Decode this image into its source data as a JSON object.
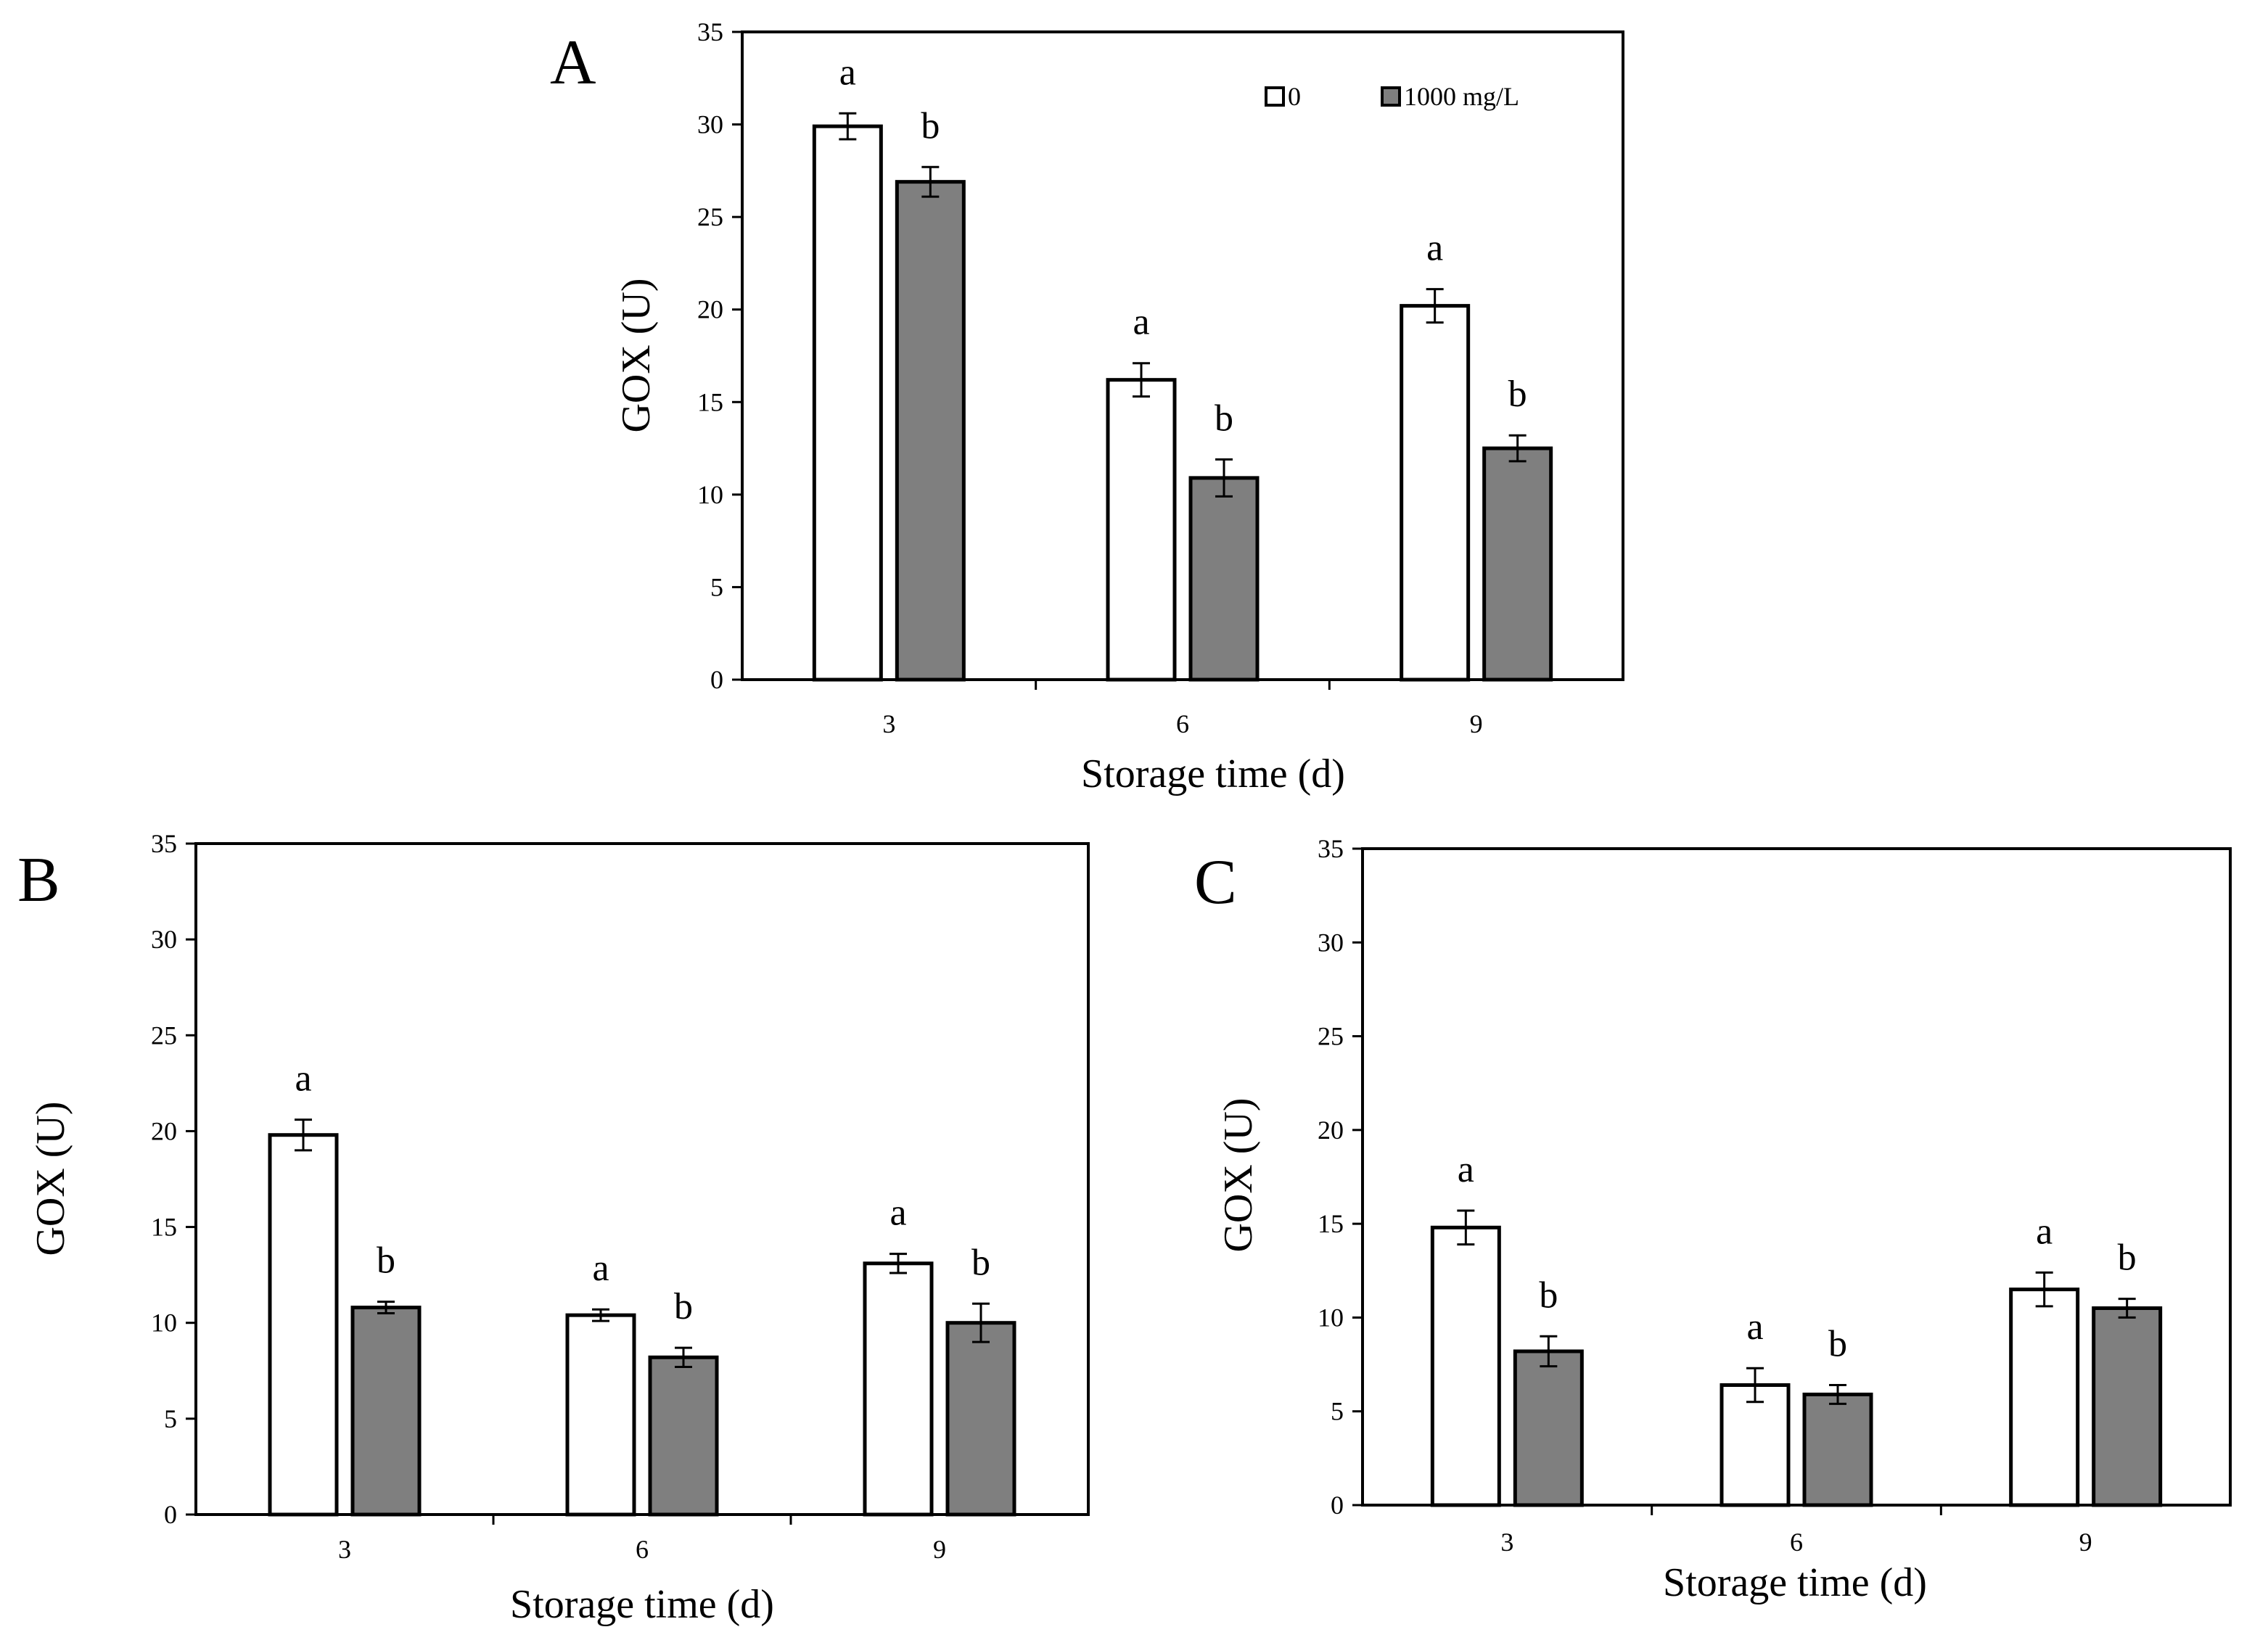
{
  "colors": {
    "bar_control": "#ffffff",
    "bar_treated": "#7f7f7f",
    "axis": "#000000"
  },
  "legend": {
    "items": [
      {
        "label": "0",
        "color": "#ffffff"
      },
      {
        "label": "1000 mg/L",
        "color": "#7f7f7f"
      }
    ]
  },
  "chart_data": [
    {
      "type": "bar",
      "panel": "A",
      "categories": [
        "3",
        "6",
        "9"
      ],
      "series": [
        {
          "name": "0",
          "values": [
            29.9,
            16.2,
            20.2
          ],
          "errors": [
            0.7,
            0.9,
            0.9
          ],
          "labels": [
            "a",
            "a",
            "a"
          ]
        },
        {
          "name": "1000 mg/L",
          "values": [
            26.9,
            10.9,
            12.5
          ],
          "errors": [
            0.8,
            1.0,
            0.7
          ],
          "labels": [
            "b",
            "b",
            "b"
          ]
        }
      ],
      "xlabel": "Storage time (d)",
      "ylabel": "GOX (U)",
      "ylim": [
        0,
        35
      ],
      "yticks": [
        "0",
        "5",
        "10",
        "15",
        "20",
        "25",
        "30",
        "35"
      ],
      "legend": "top-right"
    },
    {
      "type": "bar",
      "panel": "B",
      "categories": [
        "3",
        "6",
        "9"
      ],
      "series": [
        {
          "name": "0",
          "values": [
            19.8,
            10.4,
            13.1
          ],
          "errors": [
            0.8,
            0.3,
            0.5
          ],
          "labels": [
            "a",
            "a",
            "a"
          ]
        },
        {
          "name": "1000 mg/L",
          "values": [
            10.8,
            8.2,
            10.0
          ],
          "errors": [
            0.3,
            0.5,
            1.0
          ],
          "labels": [
            "b",
            "b",
            "b"
          ]
        }
      ],
      "xlabel": "Storage time (d)",
      "ylabel": "GOX (U)",
      "ylim": [
        0,
        35
      ],
      "yticks": [
        "0",
        "5",
        "10",
        "15",
        "20",
        "25",
        "30",
        "35"
      ]
    },
    {
      "type": "bar",
      "panel": "C",
      "categories": [
        "3",
        "6",
        "9"
      ],
      "series": [
        {
          "name": "0",
          "values": [
            14.8,
            6.4,
            11.5
          ],
          "errors": [
            0.9,
            0.9,
            0.9
          ],
          "labels": [
            "a",
            "a",
            "a"
          ]
        },
        {
          "name": "1000 mg/L",
          "values": [
            8.2,
            5.9,
            10.5
          ],
          "errors": [
            0.8,
            0.5,
            0.5
          ],
          "labels": [
            "b",
            "b",
            "b"
          ]
        }
      ],
      "xlabel": "Storage time (d)",
      "ylabel": "GOX (U)",
      "ylim": [
        0,
        35
      ],
      "yticks": [
        "0",
        "5",
        "10",
        "15",
        "20",
        "25",
        "30",
        "35"
      ]
    }
  ]
}
